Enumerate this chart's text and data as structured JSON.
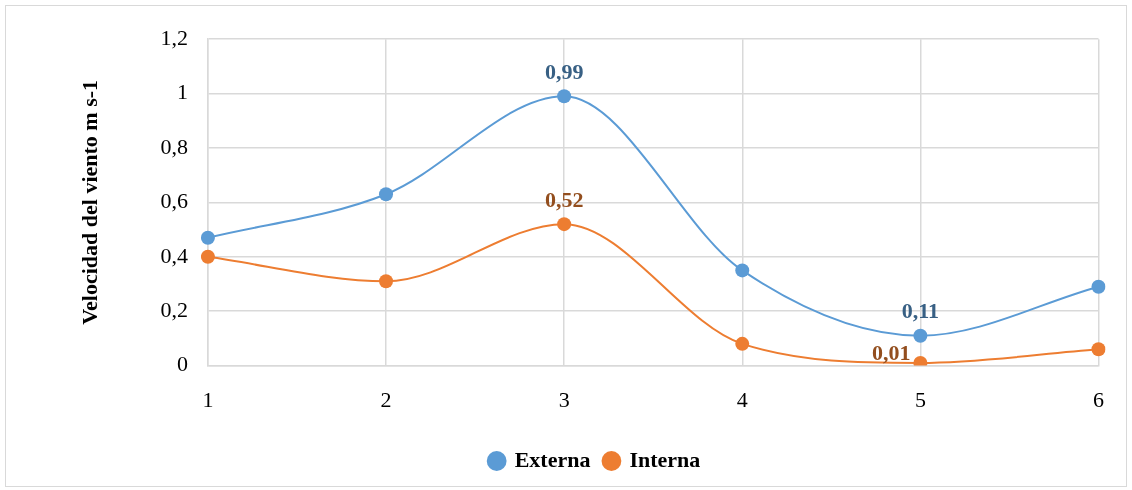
{
  "chart_data": {
    "type": "line",
    "ylabel": "Velocidad del viento m s-1",
    "categories": [
      "1",
      "2",
      "3",
      "4",
      "5",
      "6"
    ],
    "series": [
      {
        "name": "Externa",
        "color": "#5b9bd5",
        "values": [
          0.47,
          0.63,
          0.99,
          0.35,
          0.11,
          0.29
        ],
        "value_labels": [
          null,
          null,
          "0,99",
          null,
          "0,11",
          null
        ]
      },
      {
        "name": "Interna",
        "color": "#ed7d31",
        "values": [
          0.4,
          0.31,
          0.52,
          0.08,
          0.01,
          0.06
        ],
        "value_labels": [
          null,
          null,
          "0,52",
          null,
          "0,01",
          null
        ]
      }
    ],
    "ylim": [
      0,
      1.2
    ],
    "yticks": [
      0,
      {
        "value": 0.2,
        "label": "0,2"
      },
      {
        "value": 0.4,
        "label": "0,4"
      },
      {
        "value": 0.6,
        "label": "0,6"
      },
      {
        "value": 0.8,
        "label": "0,8"
      },
      1,
      {
        "value": 1.2,
        "label": "1,2"
      }
    ],
    "grid": true,
    "legend": "bottom",
    "marker": "circle",
    "line_style": "solid"
  }
}
